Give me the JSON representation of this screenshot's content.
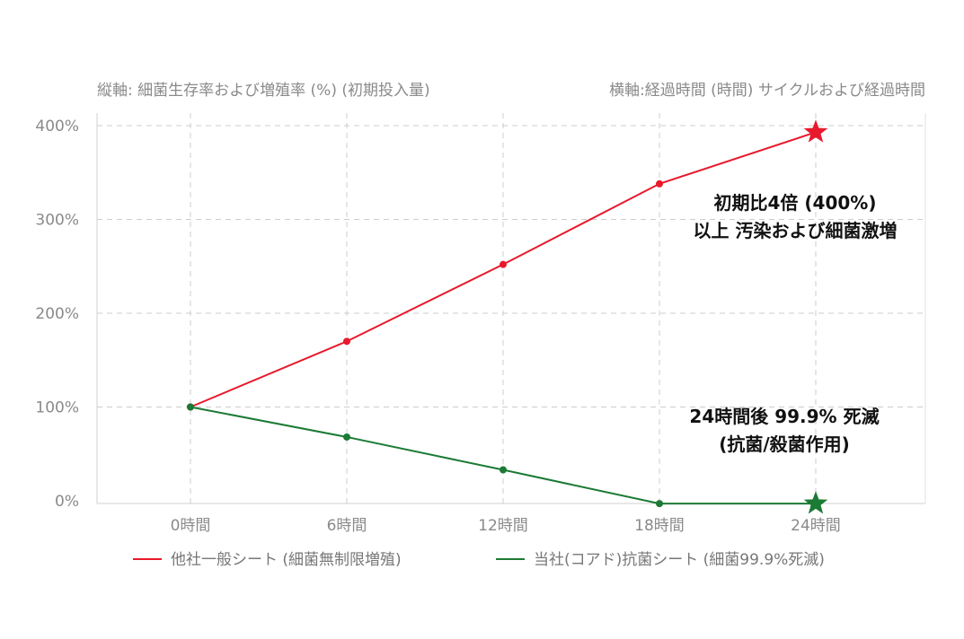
{
  "chart_data": {
    "type": "line",
    "y_caption": "縦軸: 細菌生存率および増殖率 (%) (初期投入量)",
    "x_caption": "横軸:経過時間 (時間) サイクルおよび経過時間",
    "categories": [
      "0時間",
      "6時間",
      "12時間",
      "18時間",
      "24時間"
    ],
    "y_ticks": [
      "0%",
      "100%",
      "200%",
      "300%",
      "400%"
    ],
    "ylim": [
      0,
      420
    ],
    "grid": true,
    "legend_position": "bottom",
    "series": [
      {
        "name": "他社一般シート (細菌無制限増殖)",
        "color": "#e8192c",
        "values": [
          100,
          170,
          252,
          338,
          393
        ],
        "end_marker": "star"
      },
      {
        "name": "当社(コアド)抗菌シート (細菌99.9%死滅)",
        "color": "#1b7a34",
        "values": [
          100,
          68,
          33,
          -3,
          -3
        ],
        "end_marker": "star"
      }
    ],
    "annotations": [
      {
        "lines": [
          "初期比4倍 (400%)",
          "以上 汚染および細菌激増"
        ],
        "x": 18.6,
        "y": 298
      },
      {
        "lines": [
          "24時間後 99.9% 死滅",
          "(抗菌/殺菌作用)"
        ],
        "x": 18.6,
        "y": 85
      }
    ]
  }
}
